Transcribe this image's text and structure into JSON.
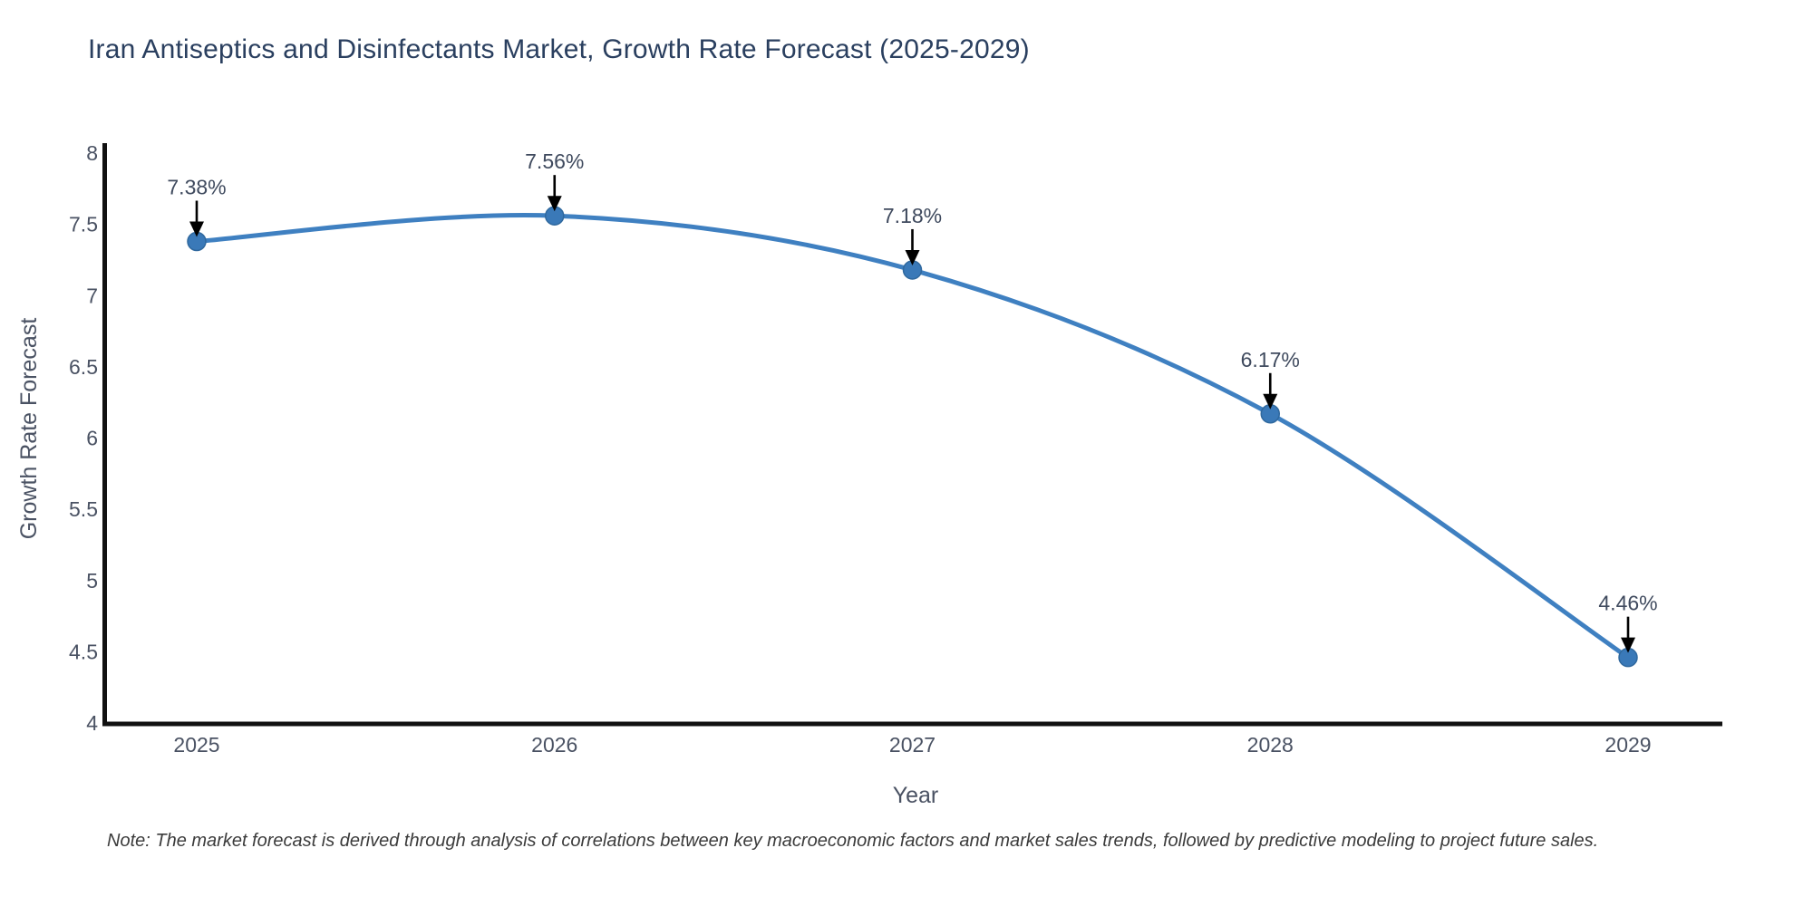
{
  "title": "Iran Antiseptics and Disinfectants Market, Growth Rate Forecast (2025-2029)",
  "note": "Note: The market forecast is derived through analysis of correlations between key macroeconomic factors and market sales trends, followed by predictive modeling to project future sales.",
  "chart_data": {
    "type": "line",
    "title": "Iran Antiseptics and Disinfectants Market, Growth Rate Forecast (2025-2029)",
    "categories": [
      "2025",
      "2026",
      "2027",
      "2028",
      "2029"
    ],
    "series": [
      {
        "name": "Growth Rate Forecast",
        "values": [
          7.38,
          7.56,
          7.18,
          6.17,
          4.46
        ]
      }
    ],
    "data_labels": [
      "7.38%",
      "7.56%",
      "7.18%",
      "6.17%",
      "4.46%"
    ],
    "xlabel": "Year",
    "ylabel": "Growth Rate Forecast",
    "ylim": [
      4,
      8
    ],
    "yticks": [
      4,
      4.5,
      5,
      5.5,
      6,
      6.5,
      7,
      7.5,
      8
    ],
    "grid": false,
    "legend_position": "none",
    "annotations_have_arrows": true
  },
  "colors": {
    "line": "#3f80c1",
    "marker_fill": "#3a79b8",
    "marker_stroke": "#2f689e",
    "axis_line": "#111111",
    "title_text": "#2a3f5f",
    "tick_text": "#4a5263",
    "annotation_text": "#3f4a5e",
    "arrow": "#000000",
    "note_text": "#3b3b3b",
    "background": "#ffffff"
  }
}
